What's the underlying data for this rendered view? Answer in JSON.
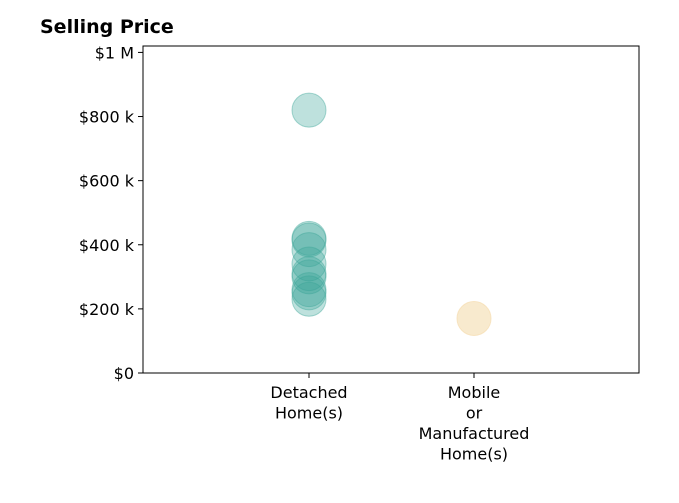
{
  "chart_data": {
    "type": "scatter",
    "title": "Selling Price",
    "categories": [
      "Detached\nHome(s)",
      "Mobile\nor\nManufactured\nHome(s)"
    ],
    "y_ticks": [
      {
        "value": 0,
        "label": "$0"
      },
      {
        "value": 200000,
        "label": "$200 k"
      },
      {
        "value": 400000,
        "label": "$400 k"
      },
      {
        "value": 600000,
        "label": "$600 k"
      },
      {
        "value": 800000,
        "label": "$800 k"
      },
      {
        "value": 1000000,
        "label": "$1 M"
      }
    ],
    "ylim": [
      0,
      1020000
    ],
    "series": [
      {
        "category_index": 0,
        "color": "#3aa597",
        "opacity": 0.33,
        "values": [
          820000,
          420000,
          415000,
          385000,
          340000,
          310000,
          300000,
          260000,
          250000,
          230000
        ]
      },
      {
        "category_index": 1,
        "color": "#f5deb3",
        "opacity": 0.65,
        "values": [
          170000
        ]
      }
    ],
    "grid": false,
    "legend": "none"
  }
}
